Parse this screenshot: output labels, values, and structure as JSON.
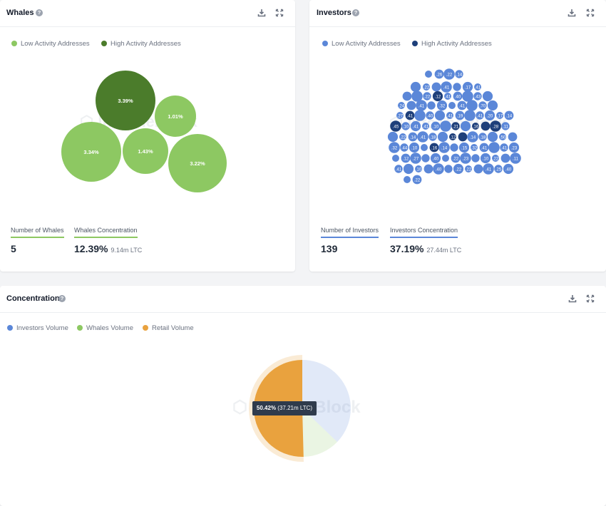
{
  "colors": {
    "low_whale": "#8dc862",
    "high_whale": "#4b7c2b",
    "low_investor": "#5b87d8",
    "high_investor": "#1e3f7a",
    "investors_volume": "#5b87d8",
    "whales_volume": "#8dc862",
    "retail_volume": "#e9a23e"
  },
  "whales": {
    "title": "Whales",
    "legend": [
      "Low Activity Addresses",
      "High Activity Addresses"
    ],
    "bubbles": [
      {
        "label": "3.39%",
        "activity": "high"
      },
      {
        "label": "1.01%",
        "activity": "low"
      },
      {
        "label": "3.34%",
        "activity": "low"
      },
      {
        "label": "1.43%",
        "activity": "low"
      },
      {
        "label": "3.22%",
        "activity": "low"
      }
    ],
    "count_label": "Number of Whales",
    "count_value": "5",
    "conc_label": "Whales Concentration",
    "conc_value": "12.39%",
    "conc_sub": "9.14m LTC"
  },
  "investors": {
    "title": "Investors",
    "legend": [
      "Low Activity Addresses",
      "High Activity Addresses"
    ],
    "count_label": "Number of Investors",
    "count_value": "139",
    "conc_label": "Investors Concentration",
    "conc_value": "37.19%",
    "conc_sub": "27.44m LTC",
    "bubbles": [
      {
        "label": "",
        "activity": "low"
      },
      {
        "label": ".26",
        "activity": "low"
      },
      {
        "label": ".22",
        "activity": "low"
      },
      {
        "label": ".14",
        "activity": "low"
      },
      {
        "label": "",
        "activity": "low"
      },
      {
        "label": ".22",
        "activity": "low"
      },
      {
        "label": "",
        "activity": "low"
      },
      {
        "label": ".41",
        "activity": "low"
      },
      {
        "label": "",
        "activity": "low"
      },
      {
        "label": ".17",
        "activity": "low"
      },
      {
        "label": ".41",
        "activity": "low"
      },
      {
        "label": "",
        "activity": "low"
      },
      {
        "label": "",
        "activity": "low"
      },
      {
        "label": ".22",
        "activity": "low"
      },
      {
        "label": ".12",
        "activity": "high"
      },
      {
        "label": ".41",
        "activity": "low"
      },
      {
        "label": ".40",
        "activity": "low"
      },
      {
        "label": "",
        "activity": "low"
      },
      {
        "label": ".43",
        "activity": "low"
      },
      {
        "label": "",
        "activity": "low"
      },
      {
        "label": ".24",
        "activity": "low"
      },
      {
        "label": "",
        "activity": "low"
      },
      {
        "label": ".41",
        "activity": "low"
      },
      {
        "label": "",
        "activity": "low"
      },
      {
        "label": ".32",
        "activity": "low"
      },
      {
        "label": "",
        "activity": "low"
      },
      {
        "label": ".41",
        "activity": "low"
      },
      {
        "label": "",
        "activity": "low"
      },
      {
        "label": ".70",
        "activity": "low"
      },
      {
        "label": "",
        "activity": "low"
      },
      {
        "label": ".27",
        "activity": "low"
      },
      {
        "label": ".41",
        "activity": "high"
      },
      {
        "label": "",
        "activity": "low"
      },
      {
        "label": ".40",
        "activity": "low"
      },
      {
        "label": "",
        "activity": "low"
      },
      {
        "label": ".41",
        "activity": "low"
      },
      {
        "label": ".19",
        "activity": "low"
      },
      {
        "label": "",
        "activity": "low"
      },
      {
        "label": ".41",
        "activity": "low"
      },
      {
        "label": ".20",
        "activity": "low"
      },
      {
        "label": ".17",
        "activity": "low"
      },
      {
        "label": ".14",
        "activity": "low"
      },
      {
        "label": ".45",
        "activity": "high"
      },
      {
        "label": ".10",
        "activity": "low"
      },
      {
        "label": ".41",
        "activity": "low"
      },
      {
        "label": ".41",
        "activity": "low"
      },
      {
        "label": ".10",
        "activity": "low"
      },
      {
        "label": "",
        "activity": "low"
      },
      {
        "label": ".21",
        "activity": "high"
      },
      {
        "label": "",
        "activity": "low"
      },
      {
        "label": ".16",
        "activity": "high"
      },
      {
        "label": "",
        "activity": "high"
      },
      {
        "label": ".28",
        "activity": "high"
      },
      {
        "label": ".11",
        "activity": "low"
      },
      {
        "label": "",
        "activity": "low"
      },
      {
        "label": ".22",
        "activity": "low"
      },
      {
        "label": ".14",
        "activity": "low"
      },
      {
        "label": ".41",
        "activity": "low"
      },
      {
        "label": ".18",
        "activity": "low"
      },
      {
        "label": "",
        "activity": "low"
      },
      {
        "label": ".12",
        "activity": "high"
      },
      {
        "label": "",
        "activity": "high"
      },
      {
        "label": ".14",
        "activity": "low"
      },
      {
        "label": ".18",
        "activity": "low"
      },
      {
        "label": "",
        "activity": "low"
      },
      {
        "label": ".50",
        "activity": "low"
      },
      {
        "label": "",
        "activity": "low"
      },
      {
        "label": ".32",
        "activity": "low"
      },
      {
        "label": ".44",
        "activity": "low"
      },
      {
        "label": ".10",
        "activity": "low"
      },
      {
        "label": "",
        "activity": "low"
      },
      {
        "label": ".16",
        "activity": "high"
      },
      {
        "label": ".14",
        "activity": "low"
      },
      {
        "label": "",
        "activity": "low"
      },
      {
        "label": ".15",
        "activity": "low"
      },
      {
        "label": ".32",
        "activity": "low"
      },
      {
        "label": ".41",
        "activity": "low"
      },
      {
        "label": "",
        "activity": "low"
      },
      {
        "label": ".41",
        "activity": "low"
      },
      {
        "label": ".23",
        "activity": "low"
      },
      {
        "label": "",
        "activity": "low"
      },
      {
        "label": ".12",
        "activity": "low"
      },
      {
        "label": ".27",
        "activity": "low"
      },
      {
        "label": "",
        "activity": "low"
      },
      {
        "label": ".40",
        "activity": "low"
      },
      {
        "label": "",
        "activity": "low"
      },
      {
        "label": ".22",
        "activity": "low"
      },
      {
        "label": ".23",
        "activity": "low"
      },
      {
        "label": "",
        "activity": "low"
      },
      {
        "label": ".10",
        "activity": "low"
      },
      {
        "label": ".22",
        "activity": "low"
      },
      {
        "label": "",
        "activity": "low"
      },
      {
        "label": ".11",
        "activity": "low"
      },
      {
        "label": ".41",
        "activity": "low"
      },
      {
        "label": "",
        "activity": "low"
      },
      {
        "label": ".10",
        "activity": "low"
      },
      {
        "label": "",
        "activity": "low"
      },
      {
        "label": ".40",
        "activity": "low"
      },
      {
        "label": "",
        "activity": "low"
      },
      {
        "label": ".22",
        "activity": "low"
      },
      {
        "label": ".22",
        "activity": "low"
      },
      {
        "label": "",
        "activity": "low"
      },
      {
        "label": ".41",
        "activity": "low"
      },
      {
        "label": ".25",
        "activity": "low"
      },
      {
        "label": ".40",
        "activity": "low"
      },
      {
        "label": "",
        "activity": "low"
      },
      {
        "label": ".22",
        "activity": "low"
      }
    ]
  },
  "concentration": {
    "title": "Concentration",
    "legend": [
      "Investors Volume",
      "Whales Volume",
      "Retail Volume"
    ],
    "tooltip_value": "50.42%",
    "tooltip_sub": "(37.21m LTC)"
  },
  "chart_data": {
    "type": "pie",
    "title": "Concentration",
    "labels": [
      "Investors Volume",
      "Whales Volume",
      "Retail Volume"
    ],
    "values": [
      37.19,
      12.39,
      50.42
    ],
    "highlighted": "Retail Volume"
  }
}
